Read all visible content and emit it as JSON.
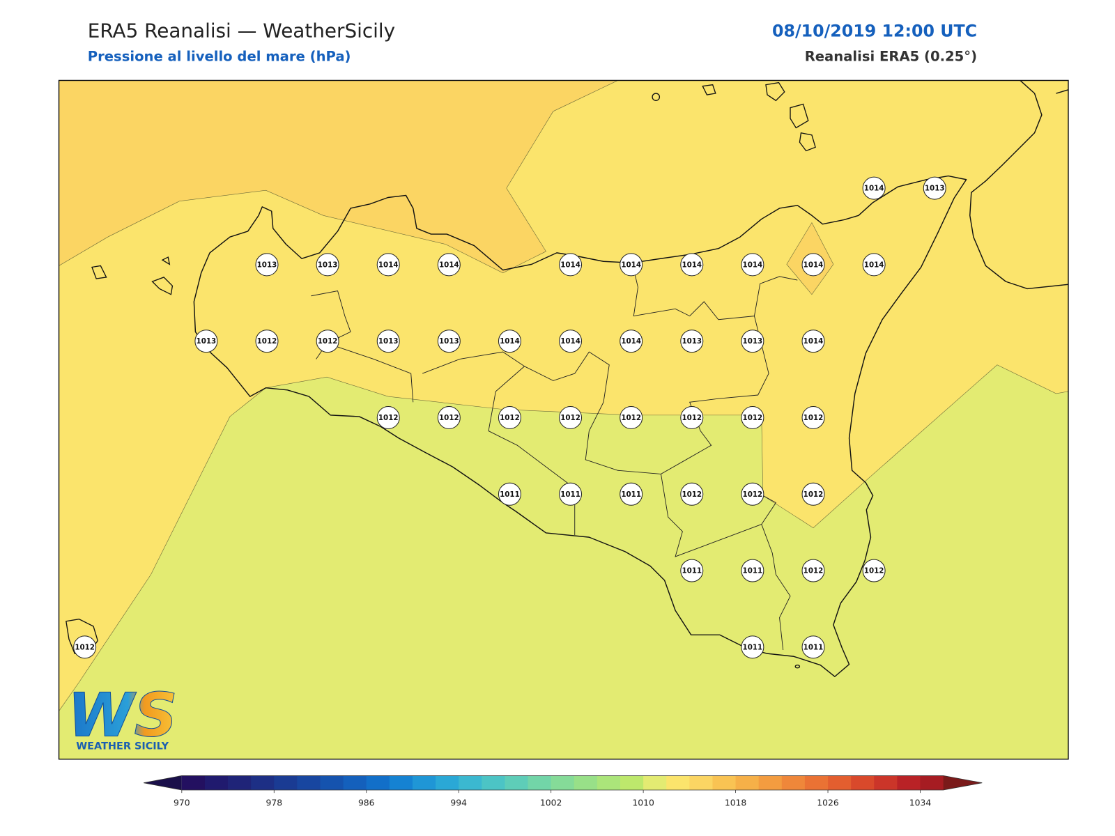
{
  "header": {
    "title": "ERA5 Reanalisi — WeatherSicily",
    "subtitle": "Pressione al livello del mare (hPa)",
    "datetime": "08/10/2019 12:00 UTC",
    "source": "Reanalisi ERA5 (0.25°)"
  },
  "stations": {
    "grid": [
      [
        null,
        null,
        null,
        null,
        null,
        null,
        null,
        null,
        null,
        null,
        null,
        null,
        null,
        1014,
        1013
      ],
      [
        null,
        null,
        null,
        1013,
        1013,
        1014,
        1014,
        null,
        1014,
        1014,
        1014,
        1014,
        1014,
        1014,
        null
      ],
      [
        null,
        null,
        1013,
        1012,
        1012,
        1013,
        1013,
        1014,
        1014,
        1014,
        1013,
        1013,
        1014,
        null,
        null
      ],
      [
        null,
        null,
        null,
        null,
        null,
        1012,
        1012,
        1012,
        1012,
        1012,
        1012,
        1012,
        1012,
        null,
        null
      ],
      [
        null,
        null,
        null,
        null,
        null,
        null,
        null,
        1011,
        1011,
        1011,
        1012,
        1012,
        1012,
        null,
        null
      ],
      [
        null,
        null,
        null,
        null,
        null,
        null,
        null,
        null,
        null,
        null,
        1011,
        1011,
        1012,
        1012,
        null
      ],
      [
        1012,
        null,
        null,
        null,
        null,
        null,
        null,
        null,
        null,
        null,
        null,
        1011,
        1011,
        null,
        null
      ]
    ]
  },
  "colorbar": {
    "lim": [
      970,
      1036
    ],
    "ticks": [
      970,
      978,
      986,
      994,
      1002,
      1010,
      1018,
      1026,
      1034
    ],
    "colors": [
      "#231060",
      "#201a6e",
      "#1f2478",
      "#1d2f85",
      "#1a3b93",
      "#1846a0",
      "#1553ae",
      "#1460bc",
      "#126fc9",
      "#1582d2",
      "#1f96d6",
      "#2aa8d6",
      "#3bb8d0",
      "#4cc4c5",
      "#5ecdb8",
      "#72d5a8",
      "#85db98",
      "#98e088",
      "#abe57a",
      "#bde86c",
      "#e3eb72",
      "#fbe46c",
      "#fbd563",
      "#f9c353",
      "#f6b048",
      "#f39c40",
      "#ef873a",
      "#ea7234",
      "#e35e2f",
      "#d9492b",
      "#cb3529",
      "#b92226",
      "#a61c22"
    ],
    "under_color": "#1a0f4a",
    "over_color": "#7a1a1a"
  },
  "logo": {
    "text": "WS",
    "caption": "WEATHER SICILY"
  }
}
